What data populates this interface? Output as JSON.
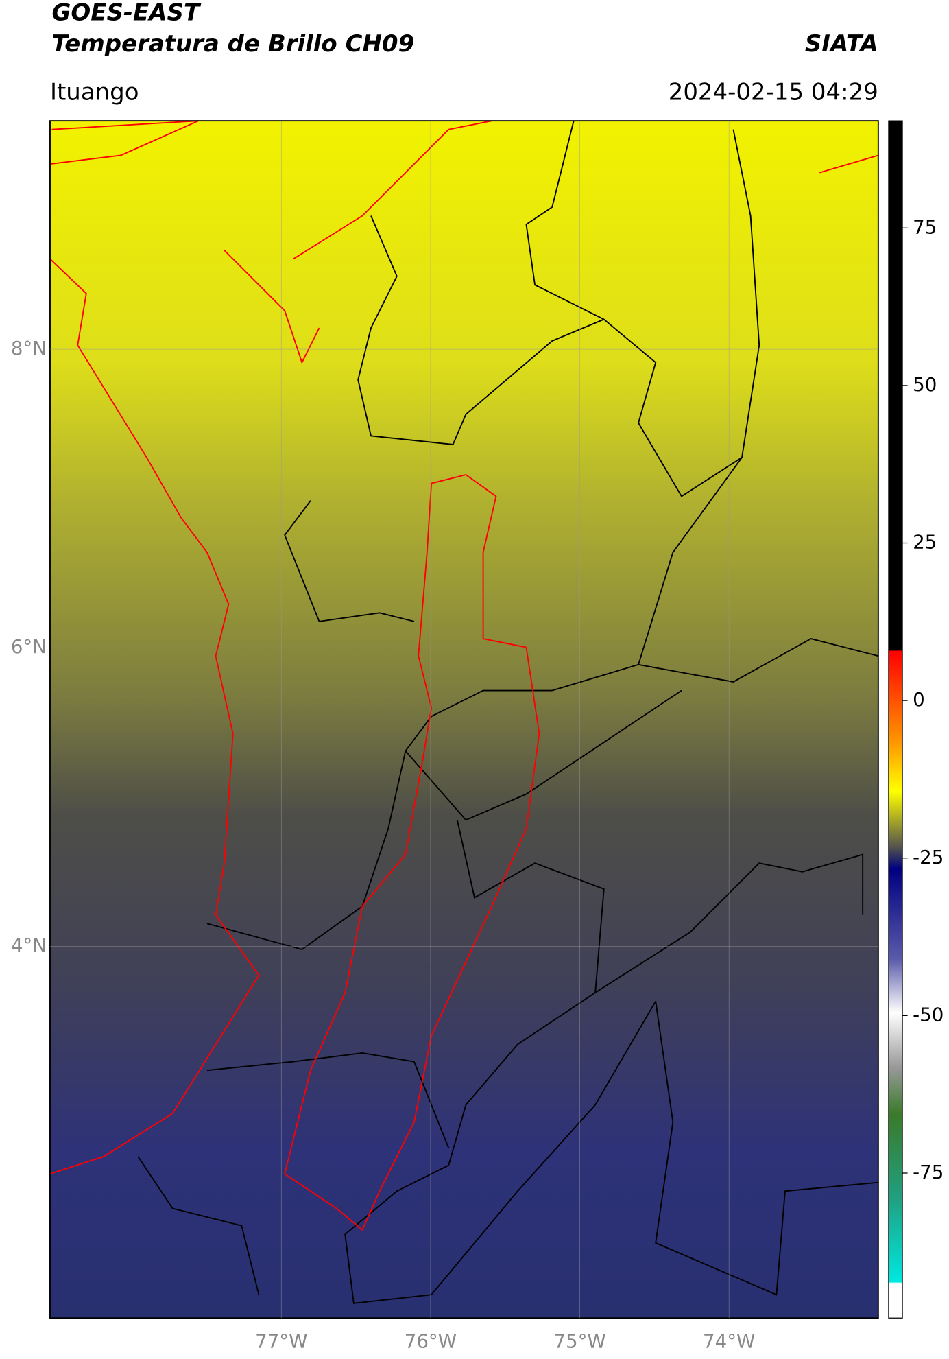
{
  "chart_data": {
    "type": "map",
    "title": "GOES-EAST",
    "subtitle": "Temperatura de Brillo CH09",
    "brand": "SIATA",
    "location": "Ituango",
    "timestamp": "2024-02-15 04:29",
    "xlim": [
      -78.55,
      -73.0
    ],
    "ylim": [
      1.51,
      9.53
    ],
    "xticks": [
      {
        "value": -77,
        "label": "77°W"
      },
      {
        "value": -76,
        "label": "76°W"
      },
      {
        "value": -75,
        "label": "75°W"
      },
      {
        "value": -74,
        "label": "74°W"
      }
    ],
    "yticks": [
      {
        "value": 8,
        "label": "8°N"
      },
      {
        "value": 6,
        "label": "6°N"
      },
      {
        "value": 4,
        "label": "4°N"
      }
    ],
    "grid": true,
    "colorbar": {
      "lim": [
        -98,
        92
      ],
      "ticks": [
        75,
        50,
        25,
        0,
        -25,
        -50,
        -75
      ]
    }
  }
}
